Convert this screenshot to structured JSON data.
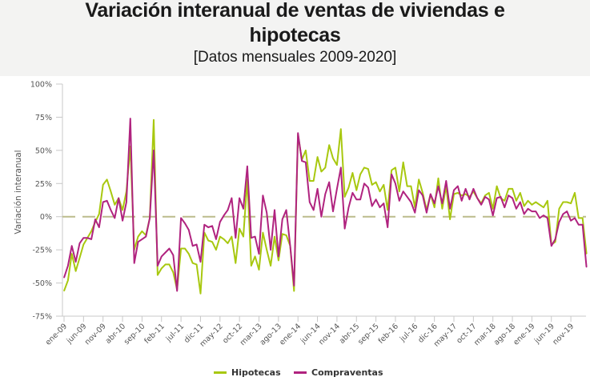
{
  "header": {
    "title_line1": "Variación interanual de ventas de viviendas e",
    "title_line2": "hipotecas",
    "subtitle": "[Datos mensuales 2009-2020]"
  },
  "chart_data": {
    "type": "line",
    "title": "Variación interanual de ventas de viviendas e hipotecas",
    "subtitle": "[Datos mensuales 2009-2020]",
    "xlabel": "",
    "ylabel": "Variación interanual",
    "ylim": [
      -75,
      100
    ],
    "yticks": [
      100,
      75,
      50,
      25,
      0,
      -25,
      -50,
      -75
    ],
    "ytick_labels": [
      "100%",
      "75%",
      "50%",
      "25%",
      "0%",
      "-25%",
      "-50%",
      "-75%"
    ],
    "xtick_labels": [
      "ene-09",
      "jun-09",
      "nov-09",
      "abr-10",
      "sep-10",
      "feb-11",
      "jul-11",
      "dic-11",
      "may-12",
      "oct-12",
      "mar-13",
      "ago-13",
      "ene-14",
      "jun-14",
      "nov-14",
      "abr-15",
      "sep-15",
      "feb-16",
      "jul-16",
      "dic-16",
      "may-17",
      "oct-17",
      "mar-18",
      "ago-18",
      "ene-19",
      "jun-19",
      "nov-19"
    ],
    "xtick_every_months": 5,
    "start_month": "ene-09",
    "grid": false,
    "zero_line": "dashed",
    "legend_position": "bottom-center",
    "series": [
      {
        "name": "Hipotecas",
        "color": "#a8c80f",
        "values": [
          -56,
          -48,
          -28,
          -41,
          -31,
          -21,
          -16,
          -11,
          -4,
          2,
          24,
          28,
          19,
          9,
          14,
          5,
          19,
          53,
          -25,
          -15,
          -11,
          -14,
          -1,
          73,
          -44,
          -39,
          -36,
          -36,
          -42,
          -55,
          -24,
          -24,
          -28,
          -35,
          -36,
          -58,
          -12,
          -18,
          -19,
          -25,
          -15,
          -17,
          -20,
          -15,
          -35,
          -9,
          -15,
          28,
          -37,
          -30,
          -40,
          -12,
          -25,
          -37,
          -15,
          -33,
          -13,
          -14,
          -22,
          -56,
          62,
          43,
          50,
          27,
          27,
          45,
          34,
          37,
          54,
          44,
          39,
          66,
          15,
          22,
          33,
          20,
          32,
          37,
          36,
          24,
          26,
          19,
          24,
          5,
          35,
          37,
          19,
          41,
          23,
          23,
          7,
          28,
          18,
          5,
          17,
          7,
          29,
          6,
          23,
          -2,
          17,
          18,
          16,
          17,
          15,
          19,
          14,
          10,
          16,
          18,
          6,
          23,
          14,
          12,
          21,
          21,
          12,
          18,
          8,
          12,
          9,
          11,
          9,
          7,
          12,
          -21,
          -19,
          6,
          11,
          11,
          10,
          18,
          -1,
          -1,
          -28
        ]
      },
      {
        "name": "Compraventas",
        "color": "#b0237f",
        "values": [
          -46,
          -37,
          -22,
          -34,
          -20,
          -16,
          -16,
          -17,
          -2,
          -8,
          11,
          12,
          5,
          -1,
          14,
          -3,
          11,
          74,
          -35,
          -19,
          -17,
          -15,
          -1,
          50,
          -37,
          -30,
          -27,
          -24,
          -29,
          -56,
          -1,
          -5,
          -10,
          -22,
          -21,
          -34,
          -6,
          -8,
          -7,
          -17,
          -4,
          1,
          5,
          14,
          -16,
          14,
          6,
          38,
          -16,
          -15,
          -28,
          16,
          3,
          -25,
          5,
          -30,
          -2,
          5,
          -22,
          -52,
          63,
          42,
          41,
          11,
          5,
          21,
          0,
          17,
          26,
          4,
          21,
          37,
          -9,
          7,
          18,
          13,
          13,
          25,
          22,
          8,
          13,
          7,
          10,
          -8,
          32,
          25,
          12,
          19,
          15,
          11,
          3,
          20,
          16,
          3,
          17,
          10,
          23,
          10,
          27,
          6,
          20,
          23,
          12,
          21,
          13,
          21,
          14,
          9,
          15,
          13,
          1,
          14,
          15,
          7,
          16,
          14,
          6,
          11,
          2,
          6,
          4,
          4,
          -1,
          1,
          -1,
          -22,
          -17,
          -4,
          2,
          4,
          -3,
          -1,
          -6,
          -6,
          -38
        ]
      }
    ]
  },
  "legend": {
    "items": [
      {
        "label": "Hipotecas",
        "color": "#a8c80f"
      },
      {
        "label": "Compraventas",
        "color": "#b0237f"
      }
    ]
  }
}
